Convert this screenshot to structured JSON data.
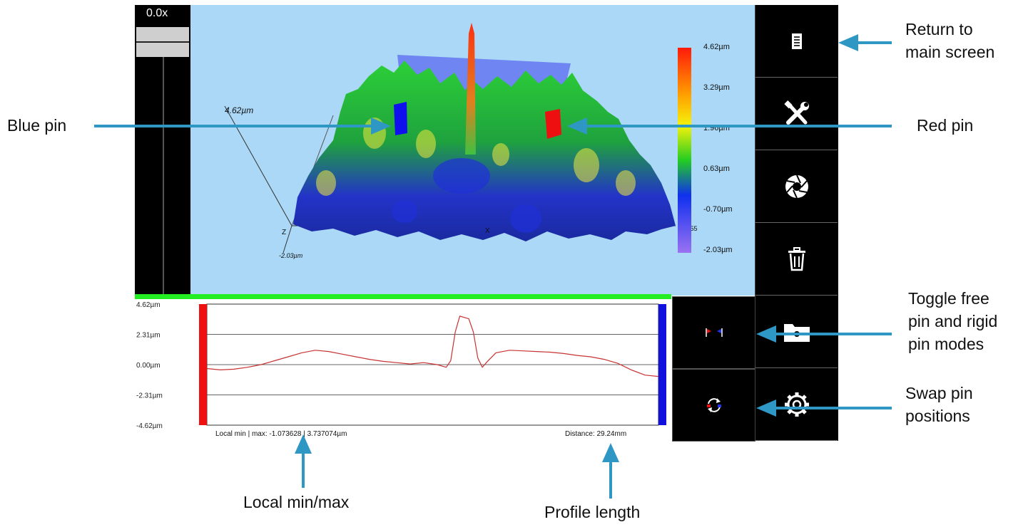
{
  "zoom": {
    "value_label": "0.0x"
  },
  "view3d": {
    "colorbar_ticks": [
      "4.62µm",
      "3.29µm",
      "1.96µm",
      "0.63µm",
      "-0.70µm",
      "-2.03µm"
    ],
    "axis_top_label": "4.62µm",
    "axis_bottom_label": "-2.03µm",
    "axis_z_label": "Z",
    "axis_x_label": "X",
    "axis_x_end_label": "59.55"
  },
  "profile": {
    "y_ticks": [
      "4.62µm",
      "2.31µm",
      "0.00µm",
      "-2.31µm",
      "-4.62µm"
    ],
    "ylim": [
      -4.62,
      4.62
    ],
    "local_minmax": "Local min | max:  -1.073628 | 3.737074µm",
    "distance": "Distance: 29.24mm",
    "pin_colors": {
      "left": "#ee1111",
      "right": "#1111dd",
      "line": "#c83232"
    },
    "trace": [
      [
        0,
        -0.3
      ],
      [
        0.03,
        -0.4
      ],
      [
        0.06,
        -0.35
      ],
      [
        0.09,
        -0.2
      ],
      [
        0.12,
        0.0
      ],
      [
        0.15,
        0.3
      ],
      [
        0.18,
        0.6
      ],
      [
        0.21,
        0.9
      ],
      [
        0.24,
        1.1
      ],
      [
        0.27,
        1.0
      ],
      [
        0.3,
        0.8
      ],
      [
        0.33,
        0.6
      ],
      [
        0.36,
        0.4
      ],
      [
        0.39,
        0.25
      ],
      [
        0.42,
        0.15
      ],
      [
        0.45,
        0.05
      ],
      [
        0.48,
        0.15
      ],
      [
        0.51,
        0.0
      ],
      [
        0.53,
        -0.2
      ],
      [
        0.54,
        0.3
      ],
      [
        0.55,
        2.5
      ],
      [
        0.56,
        3.7
      ],
      [
        0.58,
        3.5
      ],
      [
        0.59,
        2.5
      ],
      [
        0.6,
        0.5
      ],
      [
        0.61,
        -0.2
      ],
      [
        0.62,
        0.2
      ],
      [
        0.64,
        0.9
      ],
      [
        0.67,
        1.1
      ],
      [
        0.7,
        1.05
      ],
      [
        0.73,
        1.0
      ],
      [
        0.76,
        0.95
      ],
      [
        0.79,
        0.85
      ],
      [
        0.82,
        0.7
      ],
      [
        0.85,
        0.6
      ],
      [
        0.88,
        0.4
      ],
      [
        0.91,
        0.1
      ],
      [
        0.94,
        -0.4
      ],
      [
        0.97,
        -0.8
      ],
      [
        1.0,
        -0.9
      ]
    ]
  },
  "toolbar": {
    "buttons": [
      {
        "name": "main-screen-button",
        "icon": "document-icon"
      },
      {
        "name": "tools-button",
        "icon": "wrench-screwdriver-icon"
      },
      {
        "name": "capture-button",
        "icon": "aperture-icon"
      },
      {
        "name": "delete-button",
        "icon": "trash-icon"
      },
      {
        "name": "folder-button",
        "icon": "folder-icon"
      },
      {
        "name": "settings-button",
        "icon": "gear-icon"
      }
    ],
    "pin_buttons": [
      {
        "name": "toggle-pin-mode-button",
        "icon": "pin-pair-icon"
      },
      {
        "name": "swap-pins-button",
        "icon": "swap-icon"
      }
    ]
  },
  "callouts": {
    "return_main": "Return to\nmain screen",
    "blue_pin": "Blue pin",
    "red_pin": "Red pin",
    "toggle_pins": "Toggle free\npin and rigid\npin modes",
    "swap_pins": "Swap   pin\npositions",
    "local_minmax": "Local min/max",
    "profile_length": "Profile length"
  },
  "colors": {
    "arrow": "#2f97c4",
    "green_bar": "#22ee22",
    "view_bg": "#aad8f6"
  }
}
